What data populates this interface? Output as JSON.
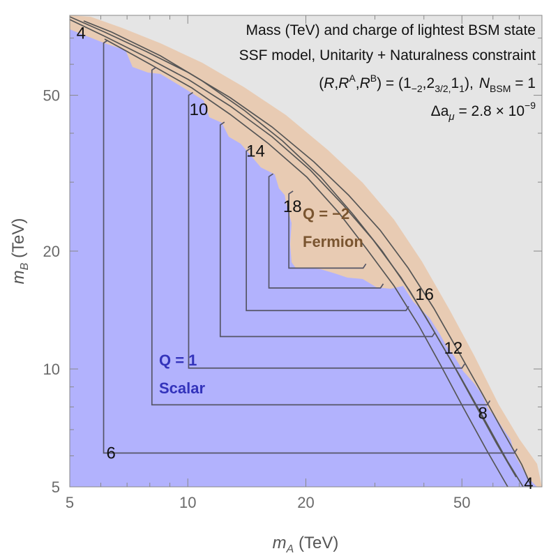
{
  "chart_data": {
    "type": "contour",
    "title_lines": [
      "Mass (TeV) and charge of lightest BSM state",
      "SSF model, Unitarity + Naturalness  constraint",
      "(R,R^A,R^B) = (1_{-2},2_{3/2},1_1), N_BSM = 1",
      "Δa_μ = 2.8 × 10^-9"
    ],
    "annotation": {
      "title": "Mass (TeV) and charge of lightest BSM state",
      "model": "SSF model, Unitarity + Naturalness  constraint",
      "reps": {
        "open": "(",
        "r": "R",
        "sep1": ",",
        "ra": "R",
        "ra_sup": "A",
        "sep2": ",",
        "rb": "R",
        "rb_sup": "B",
        "eq": ") = (1",
        "q1": "−2",
        "mid": ",2",
        "q2": "3/2,",
        "tail": "1",
        "q3": "1",
        "close": "),",
        "n": "N",
        "n_sub": "BSM",
        "n_val": " = 1"
      },
      "delta": {
        "sym": "Δa",
        "sub": "μ",
        "val": " = 2.8 × 10",
        "exp": "−9"
      }
    },
    "x_axis": {
      "label_main": "m",
      "label_sub": "A",
      "label_unit": " (TeV)",
      "scale": "log",
      "range": [
        5,
        80
      ],
      "ticks": [
        5,
        10,
        20,
        50
      ],
      "tick_labels": [
        "5",
        "10",
        "20",
        "50"
      ]
    },
    "y_axis": {
      "label_main": "m",
      "label_sub": "B",
      "label_unit": " (TeV)",
      "scale": "log",
      "range": [
        5,
        80
      ],
      "ticks": [
        5,
        10,
        20,
        50
      ],
      "tick_labels": [
        "5",
        "10",
        "20",
        "50"
      ]
    },
    "regions": [
      {
        "name": "Q = 1",
        "label_line1": "Q = 1",
        "label_line2": "Scalar",
        "color": "#b2b2fd",
        "text_color": "#3333bb"
      },
      {
        "name": "Q = −2",
        "label_line1": "Q = −2",
        "label_line2": "Fermion",
        "color": "#e8cbb3",
        "text_color": "#7a5530"
      },
      {
        "name": "excluded",
        "color": "#e5e5e5"
      }
    ],
    "contour_levels": [
      4,
      6,
      8,
      10,
      12,
      14,
      16,
      18
    ],
    "contours_lshape": [
      {
        "level": 6,
        "corner_TeV": 6.1,
        "end_TeV": 68
      },
      {
        "level": 8,
        "corner_TeV": 8.1,
        "end_TeV": 58
      },
      {
        "level": 10,
        "corner_TeV": 10.05,
        "end_TeV": 50
      },
      {
        "level": 12,
        "corner_TeV": 12.1,
        "end_TeV": 42
      },
      {
        "level": 14,
        "corner_TeV": 14.1,
        "end_TeV": 36
      },
      {
        "level": 16,
        "corner_TeV": 16.1,
        "end_TeV": 31
      },
      {
        "level": 18,
        "corner_TeV": 18.1,
        "end_TeV": 28
      }
    ],
    "boundary_curves_level_labels": [
      "4",
      "4"
    ],
    "contour_labels": [
      {
        "text": "4",
        "x": 5.2,
        "y": 72
      },
      {
        "text": "10",
        "x": 10.1,
        "y": 46
      },
      {
        "text": "14",
        "x": 14.1,
        "y": 36
      },
      {
        "text": "18",
        "x": 17.5,
        "y": 26
      },
      {
        "text": "16",
        "x": 38,
        "y": 15.5
      },
      {
        "text": "12",
        "x": 45,
        "y": 11.3
      },
      {
        "text": "8",
        "x": 55,
        "y": 7.7
      },
      {
        "text": "6",
        "x": 6.2,
        "y": 6.1
      },
      {
        "text": "4",
        "x": 72,
        "y": 5.1
      }
    ],
    "color_boundary": "#e5e5e5"
  }
}
